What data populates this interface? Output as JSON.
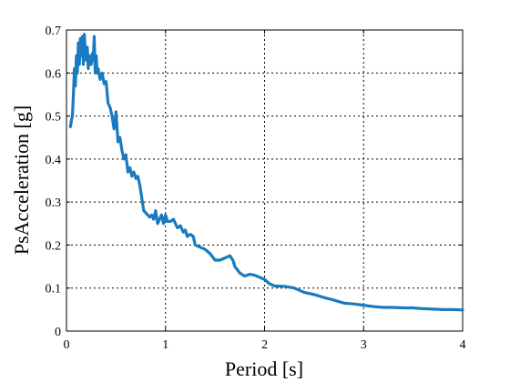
{
  "chart_data": {
    "type": "line",
    "title": "",
    "xlabel": "Period [s]",
    "ylabel": "PsAcceleration [g]",
    "xlim": [
      0,
      4
    ],
    "ylim": [
      0,
      0.7
    ],
    "xticks": [
      0,
      1,
      2,
      3,
      4
    ],
    "xtick_labels": [
      "0",
      "1",
      "2",
      "3",
      "4"
    ],
    "yticks": [
      0,
      0.1,
      0.2,
      0.3,
      0.4,
      0.5,
      0.6,
      0.7
    ],
    "ytick_labels": [
      "0",
      "0.1",
      "0.2",
      "0.3",
      "0.4",
      "0.5",
      "0.6",
      "0.7"
    ],
    "grid": true,
    "legend": "none",
    "line_color": "#1a7abf",
    "series": [
      {
        "x": [
          0.04,
          0.05,
          0.06,
          0.07,
          0.08,
          0.09,
          0.1,
          0.11,
          0.12,
          0.13,
          0.14,
          0.15,
          0.16,
          0.17,
          0.18,
          0.19,
          0.2,
          0.21,
          0.22,
          0.23,
          0.24,
          0.25,
          0.26,
          0.27,
          0.28,
          0.29,
          0.3,
          0.31,
          0.32,
          0.34,
          0.36,
          0.38,
          0.4,
          0.42,
          0.44,
          0.46,
          0.48,
          0.5,
          0.52,
          0.54,
          0.56,
          0.58,
          0.6,
          0.62,
          0.64,
          0.66,
          0.68,
          0.7,
          0.72,
          0.74,
          0.76,
          0.78,
          0.8,
          0.82,
          0.84,
          0.86,
          0.88,
          0.9,
          0.92,
          0.94,
          0.96,
          0.98,
          1.0,
          1.02,
          1.05,
          1.08,
          1.12,
          1.15,
          1.18,
          1.2,
          1.22,
          1.25,
          1.28,
          1.3,
          1.35,
          1.4,
          1.45,
          1.5,
          1.55,
          1.6,
          1.62,
          1.65,
          1.68,
          1.7,
          1.75,
          1.8,
          1.85,
          1.9,
          1.95,
          2.0,
          2.05,
          2.1,
          2.2,
          2.3,
          2.4,
          2.5,
          2.6,
          2.7,
          2.8,
          2.9,
          3.0,
          3.1,
          3.2,
          3.3,
          3.4,
          3.5,
          3.6,
          3.7,
          3.8,
          3.9,
          4.0
        ],
        "y": [
          0.475,
          0.49,
          0.5,
          0.55,
          0.61,
          0.57,
          0.64,
          0.6,
          0.67,
          0.62,
          0.68,
          0.64,
          0.685,
          0.62,
          0.69,
          0.65,
          0.63,
          0.66,
          0.61,
          0.64,
          0.63,
          0.62,
          0.645,
          0.63,
          0.685,
          0.6,
          0.64,
          0.6,
          0.61,
          0.585,
          0.6,
          0.575,
          0.58,
          0.53,
          0.52,
          0.5,
          0.47,
          0.51,
          0.44,
          0.45,
          0.42,
          0.4,
          0.41,
          0.37,
          0.38,
          0.36,
          0.37,
          0.355,
          0.36,
          0.34,
          0.31,
          0.28,
          0.275,
          0.27,
          0.265,
          0.27,
          0.26,
          0.28,
          0.25,
          0.26,
          0.27,
          0.25,
          0.27,
          0.255,
          0.255,
          0.26,
          0.24,
          0.245,
          0.23,
          0.235,
          0.22,
          0.225,
          0.22,
          0.2,
          0.195,
          0.19,
          0.18,
          0.165,
          0.165,
          0.17,
          0.172,
          0.175,
          0.165,
          0.15,
          0.135,
          0.128,
          0.132,
          0.13,
          0.125,
          0.12,
          0.11,
          0.105,
          0.104,
          0.1,
          0.09,
          0.085,
          0.078,
          0.072,
          0.065,
          0.063,
          0.06,
          0.057,
          0.055,
          0.055,
          0.054,
          0.054,
          0.052,
          0.051,
          0.05,
          0.05,
          0.049
        ]
      }
    ]
  }
}
